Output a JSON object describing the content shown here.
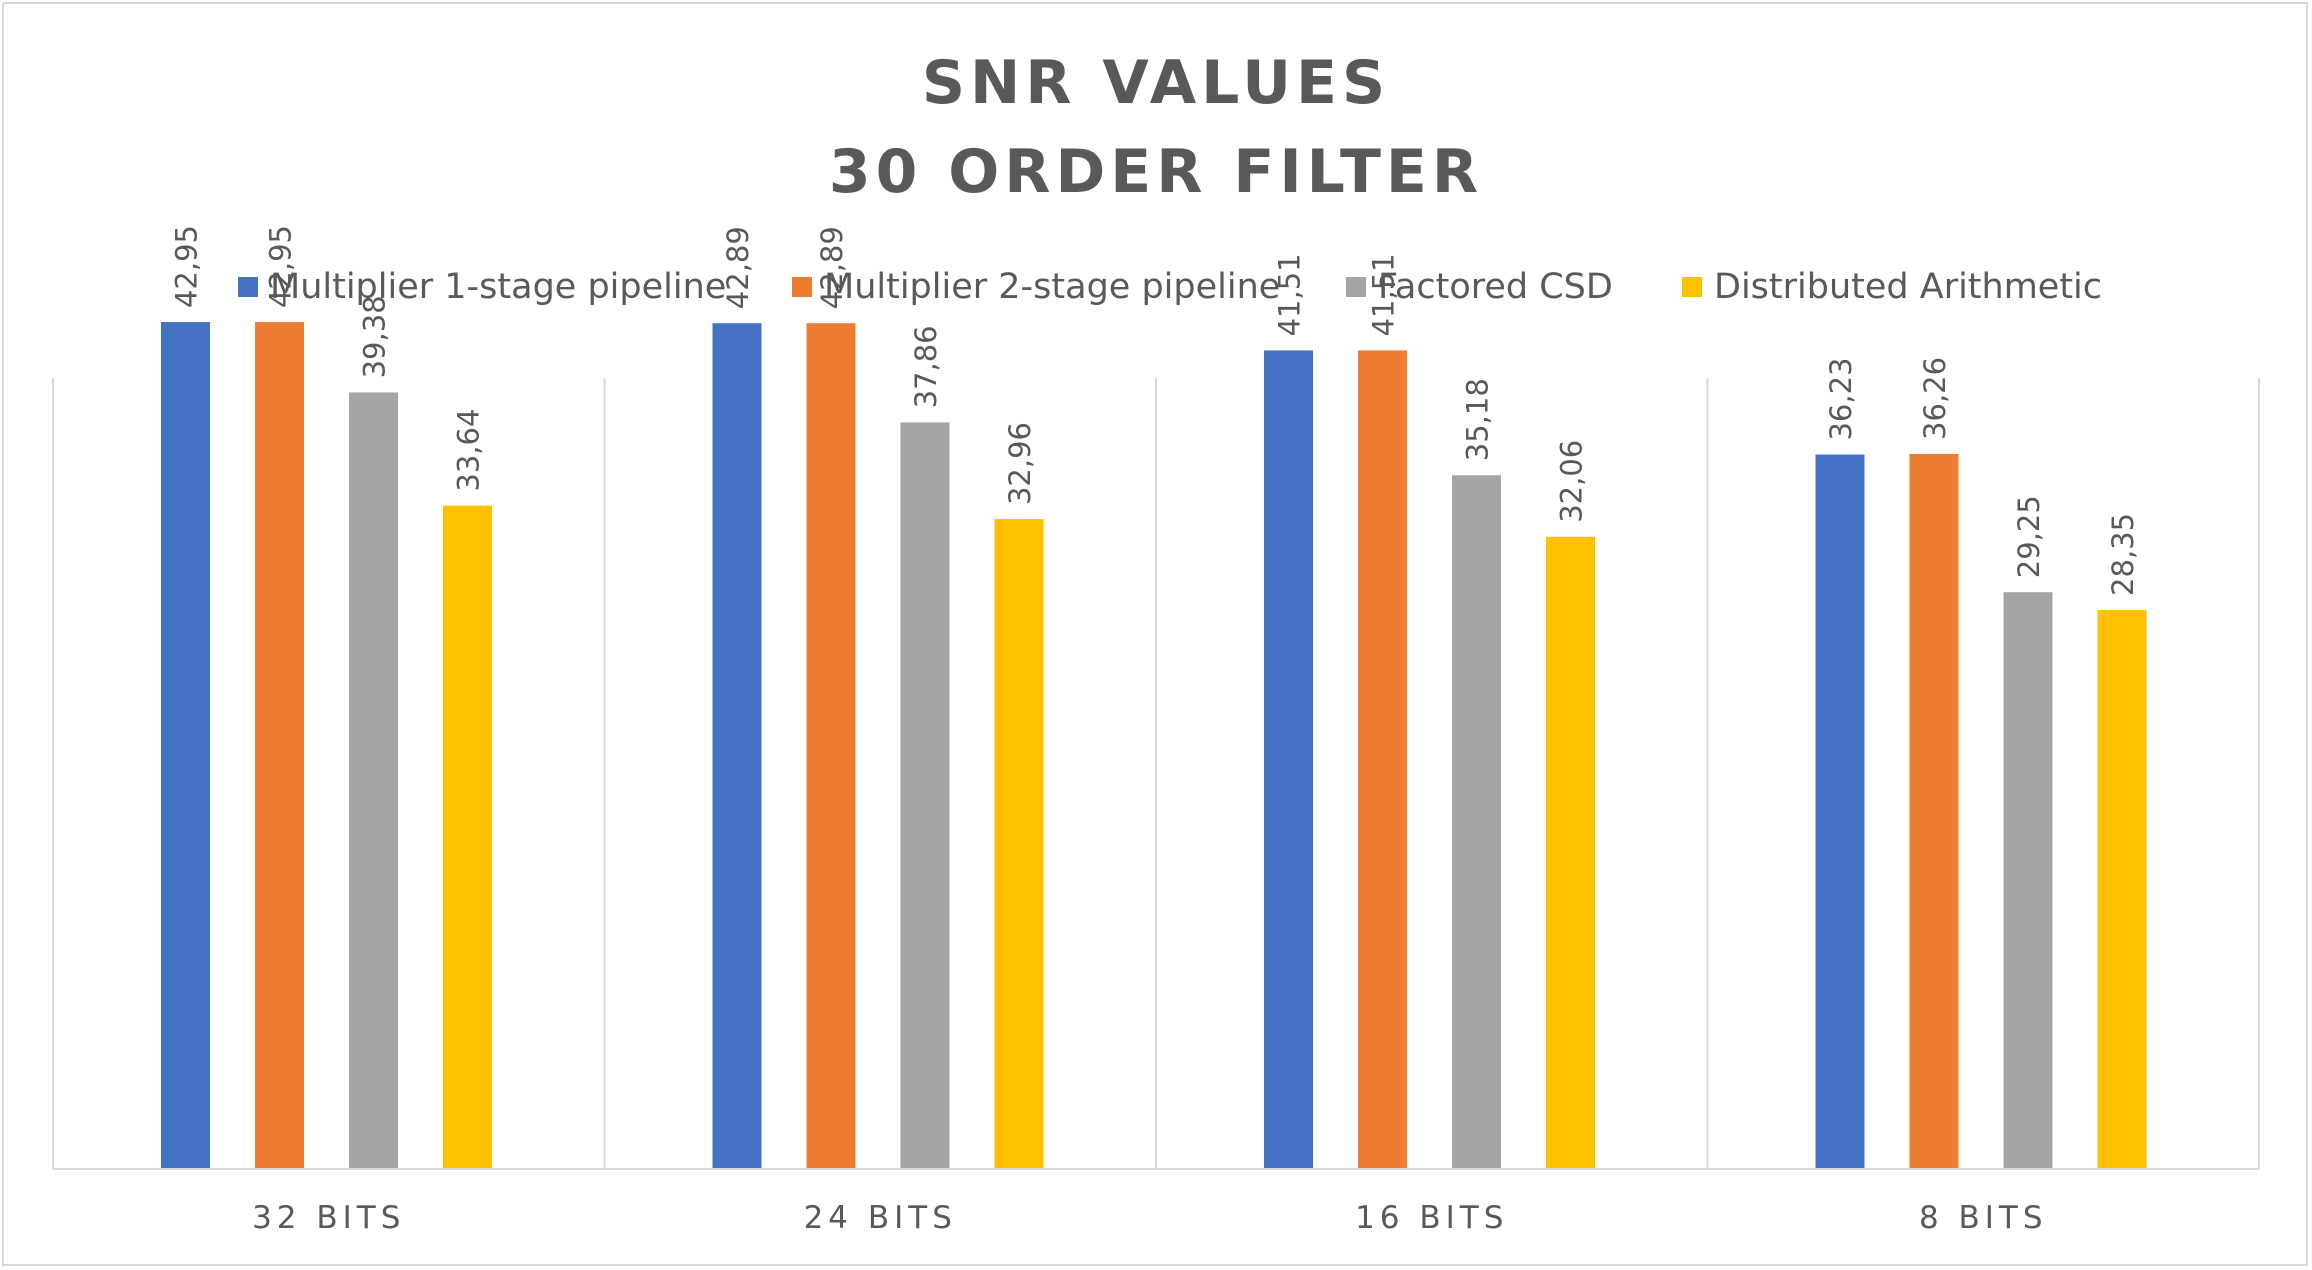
{
  "chart_data": {
    "type": "bar",
    "title": [
      "SNR VALUES",
      "30 ORDER FILTER"
    ],
    "categories": [
      "32 BITS",
      "24 BITS",
      "16 BITS",
      "8 BITS"
    ],
    "series": [
      {
        "name": "Multiplier 1-stage pipeline",
        "color": "#4472c4",
        "values": [
          42.95,
          42.89,
          41.51,
          36.23
        ],
        "labels": [
          "42,95",
          "42,89",
          "41,51",
          "36,23"
        ]
      },
      {
        "name": "Multiplier 2-stage pipeline",
        "color": "#ed7d31",
        "values": [
          42.95,
          42.89,
          41.51,
          36.26
        ],
        "labels": [
          "42,95",
          "42,89",
          "41,51",
          "36,26"
        ]
      },
      {
        "name": "Factored CSD",
        "color": "#a5a5a5",
        "values": [
          39.38,
          37.86,
          35.18,
          29.25
        ],
        "labels": [
          "39,38",
          "37,86",
          "35,18",
          "29,25"
        ]
      },
      {
        "name": "Distributed Arithmetic",
        "color": "#ffc000",
        "values": [
          33.64,
          32.96,
          32.06,
          28.35
        ],
        "labels": [
          "33,64",
          "32,96",
          "32,06",
          "28,35"
        ]
      }
    ],
    "ylim": [
      0,
      50
    ],
    "legend_position": "top",
    "grid": "vertical category separators"
  }
}
